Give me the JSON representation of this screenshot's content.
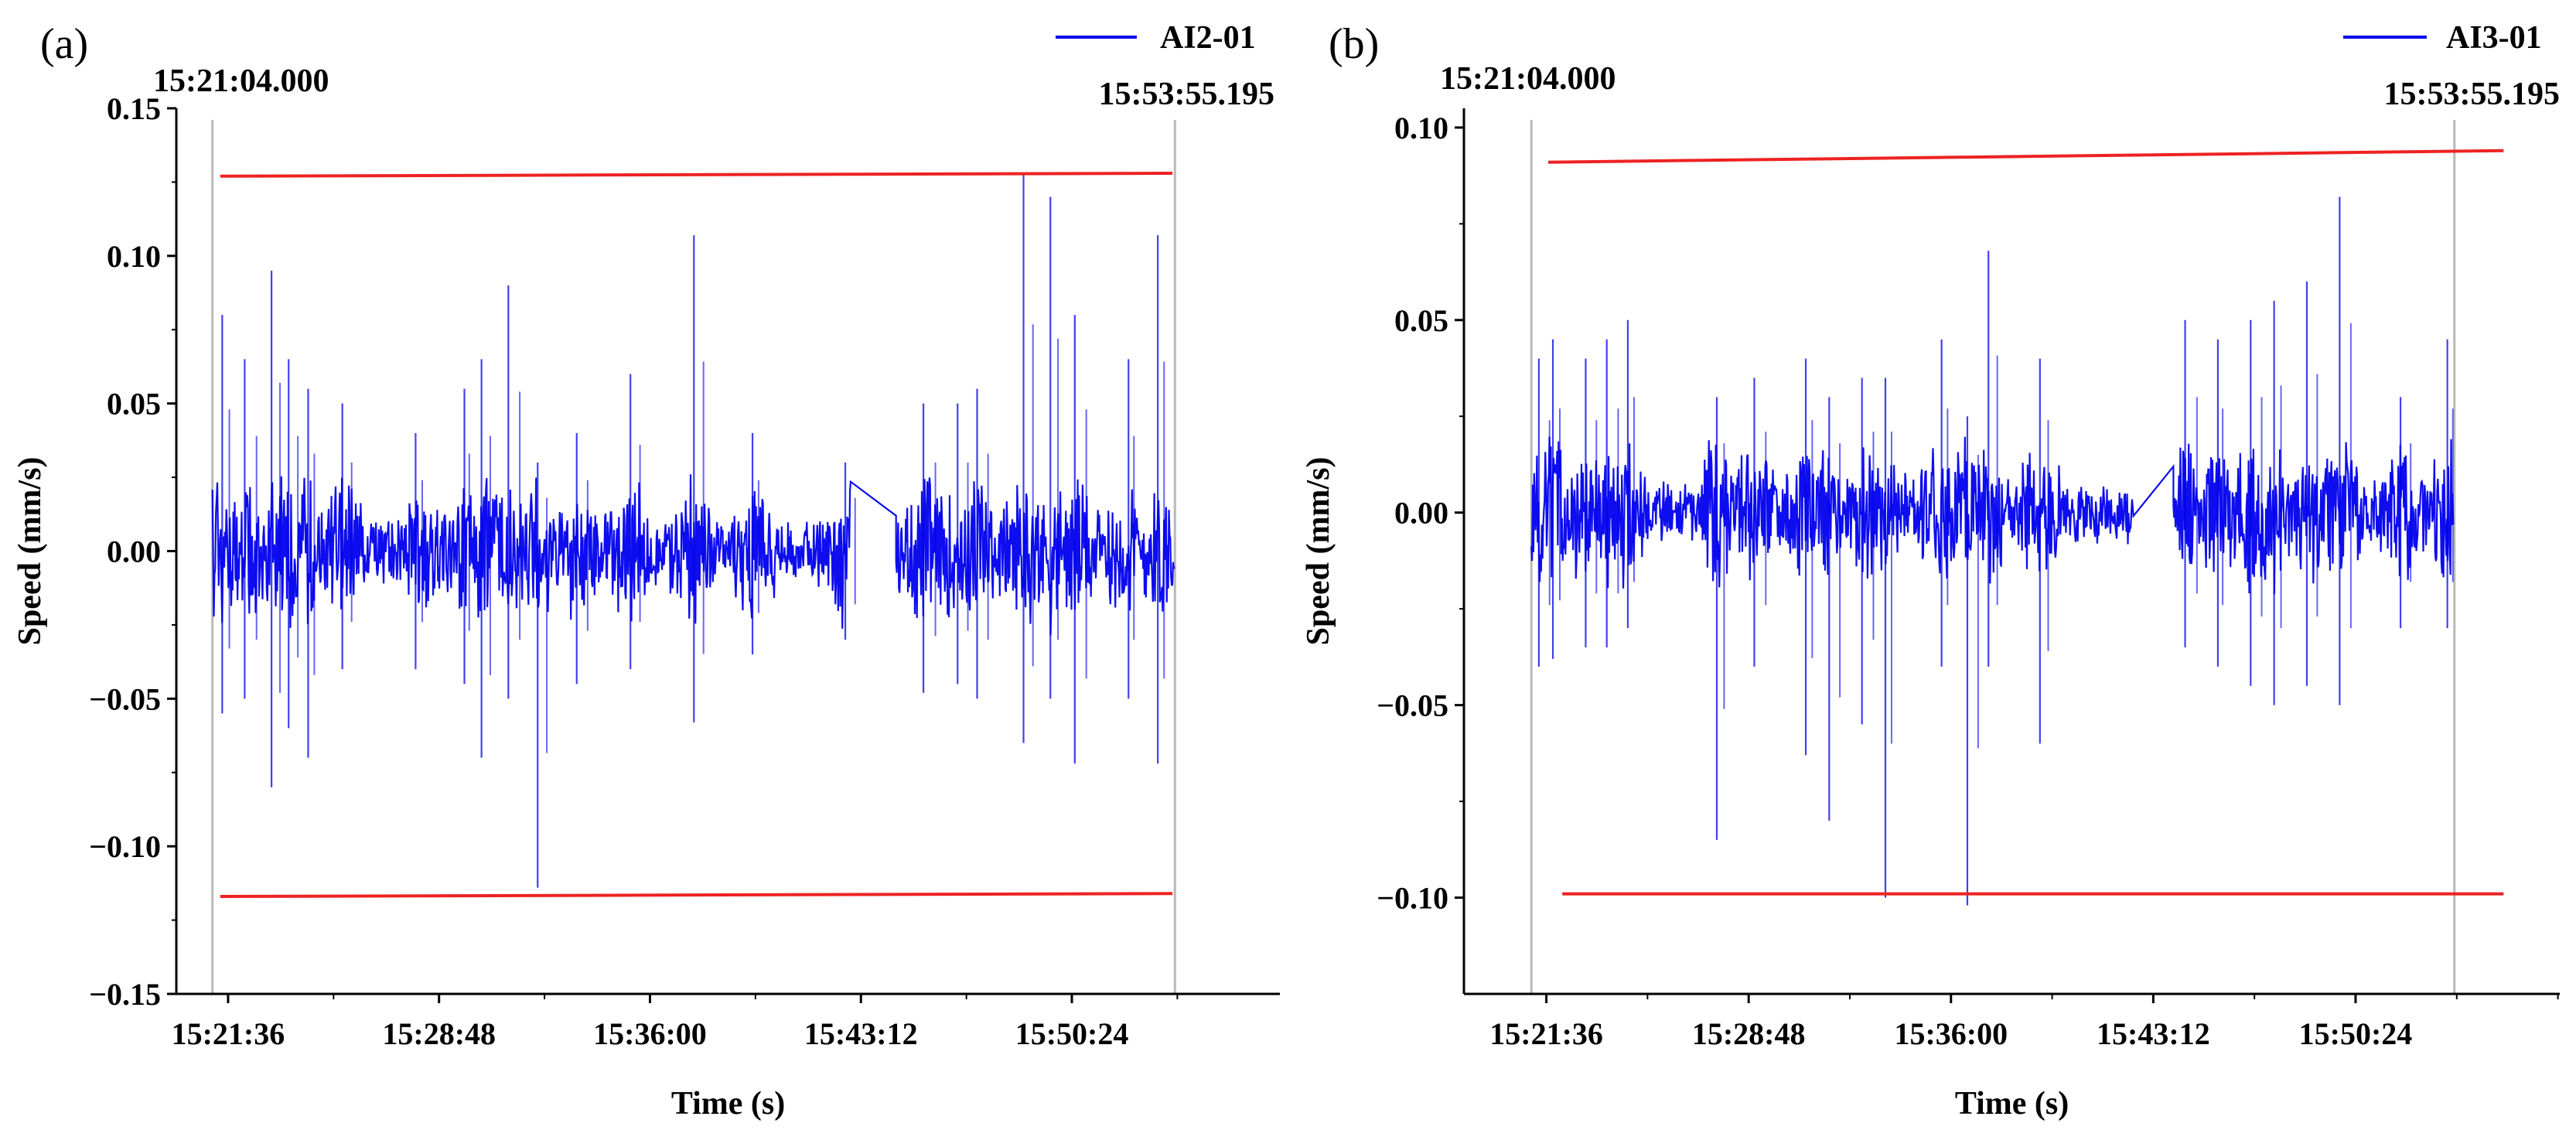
{
  "chart_data": [
    {
      "panel_label": "(a)",
      "type": "line",
      "xlabel": "Time (s)",
      "ylabel": "Speed (mm/s)",
      "xlim": [
        "15:19:50",
        "15:57:30"
      ],
      "ylim": [
        -0.15,
        0.15
      ],
      "x_ticks": [
        "15:21:36",
        "15:28:48",
        "15:36:00",
        "15:43:12",
        "15:50:24"
      ],
      "y_ticks": [
        "0.15",
        "0.10",
        "0.05",
        "0.00",
        "−0.05",
        "−0.10",
        "−0.15"
      ],
      "cursor_start": "15:21:04.000",
      "cursor_end": "15:53:55.195",
      "series": [
        {
          "name": "AI2-01",
          "color": "#0000ee",
          "segments": [
            [
              "15:21:04",
              "15:42:52"
            ],
            [
              "15:44:24",
              "15:53:55"
            ]
          ],
          "baseline_amplitude": 0.012,
          "peaks": [
            {
              "t": "15:21:24",
              "max": 0.08,
              "min": -0.055
            },
            {
              "t": "15:22:10",
              "max": 0.065,
              "min": -0.05
            },
            {
              "t": "15:23:05",
              "max": 0.095,
              "min": -0.08
            },
            {
              "t": "15:23:40",
              "max": 0.065,
              "min": -0.06
            },
            {
              "t": "15:24:20",
              "max": 0.055,
              "min": -0.07
            },
            {
              "t": "15:25:30",
              "max": 0.05,
              "min": -0.04
            },
            {
              "t": "15:28:00",
              "max": 0.04,
              "min": -0.04
            },
            {
              "t": "15:29:40",
              "max": 0.055,
              "min": -0.045
            },
            {
              "t": "15:30:15",
              "max": 0.065,
              "min": -0.07
            },
            {
              "t": "15:31:10",
              "max": 0.09,
              "min": -0.05
            },
            {
              "t": "15:32:10",
              "max": 0.03,
              "min": -0.114
            },
            {
              "t": "15:33:30",
              "max": 0.04,
              "min": -0.045
            },
            {
              "t": "15:35:20",
              "max": 0.06,
              "min": -0.04
            },
            {
              "t": "15:37:30",
              "max": 0.107,
              "min": -0.058
            },
            {
              "t": "15:39:30",
              "max": 0.04,
              "min": -0.035
            },
            {
              "t": "15:42:40",
              "max": 0.03,
              "min": -0.03
            },
            {
              "t": "15:45:20",
              "max": 0.05,
              "min": -0.048
            },
            {
              "t": "15:46:30",
              "max": 0.05,
              "min": -0.045
            },
            {
              "t": "15:47:10",
              "max": 0.055,
              "min": -0.05
            },
            {
              "t": "15:48:45",
              "max": 0.128,
              "min": -0.065
            },
            {
              "t": "15:49:40",
              "max": 0.12,
              "min": -0.05
            },
            {
              "t": "15:50:30",
              "max": 0.08,
              "min": -0.072
            },
            {
              "t": "15:52:20",
              "max": 0.065,
              "min": -0.05
            },
            {
              "t": "15:53:20",
              "max": 0.107,
              "min": -0.072
            }
          ]
        }
      ],
      "threshold_lines": [
        {
          "color": "#ee2222",
          "from": [
            "15:21:20",
            0.127
          ],
          "to": [
            "15:53:50",
            0.128
          ]
        },
        {
          "color": "#ee2222",
          "from": [
            "15:21:20",
            -0.117
          ],
          "to": [
            "15:53:50",
            -0.116
          ]
        }
      ]
    },
    {
      "panel_label": "(b)",
      "type": "line",
      "xlabel": "Time (s)",
      "ylabel": "Speed (mm/s)",
      "xlim": [
        "15:18:40",
        "15:57:40"
      ],
      "ylim": [
        -0.125,
        0.105
      ],
      "x_ticks": [
        "15:21:36",
        "15:28:48",
        "15:36:00",
        "15:43:12",
        "15:50:24"
      ],
      "y_ticks": [
        "0.10",
        "0.05",
        "0.00",
        "−0.05",
        "−0.10"
      ],
      "cursor_start": "15:21:04.000",
      "cursor_end": "15:53:55.195",
      "series": [
        {
          "name": "AI3-01",
          "color": "#0000ee",
          "segments": [
            [
              "15:21:04",
              "15:42:30"
            ],
            [
              "15:43:55",
              "15:53:55"
            ]
          ],
          "baseline_amplitude": 0.009,
          "peaks": [
            {
              "t": "15:21:20",
              "max": 0.04,
              "min": -0.04
            },
            {
              "t": "15:21:50",
              "max": 0.045,
              "min": -0.038
            },
            {
              "t": "15:23:00",
              "max": 0.04,
              "min": -0.035
            },
            {
              "t": "15:23:45",
              "max": 0.045,
              "min": -0.035
            },
            {
              "t": "15:24:30",
              "max": 0.05,
              "min": -0.03
            },
            {
              "t": "15:27:40",
              "max": 0.03,
              "min": -0.085
            },
            {
              "t": "15:29:00",
              "max": 0.035,
              "min": -0.04
            },
            {
              "t": "15:30:50",
              "max": 0.04,
              "min": -0.063
            },
            {
              "t": "15:31:40",
              "max": 0.03,
              "min": -0.08
            },
            {
              "t": "15:32:50",
              "max": 0.035,
              "min": -0.055
            },
            {
              "t": "15:33:40",
              "max": 0.035,
              "min": -0.1
            },
            {
              "t": "15:35:40",
              "max": 0.045,
              "min": -0.04
            },
            {
              "t": "15:36:35",
              "max": 0.025,
              "min": -0.102
            },
            {
              "t": "15:37:20",
              "max": 0.068,
              "min": -0.04
            },
            {
              "t": "15:39:10",
              "max": 0.04,
              "min": -0.06
            },
            {
              "t": "15:44:20",
              "max": 0.05,
              "min": -0.035
            },
            {
              "t": "15:45:30",
              "max": 0.045,
              "min": -0.04
            },
            {
              "t": "15:46:40",
              "max": 0.05,
              "min": -0.045
            },
            {
              "t": "15:47:30",
              "max": 0.055,
              "min": -0.05
            },
            {
              "t": "15:48:40",
              "max": 0.06,
              "min": -0.045
            },
            {
              "t": "15:49:50",
              "max": 0.082,
              "min": -0.05
            },
            {
              "t": "15:52:00",
              "max": 0.03,
              "min": -0.03
            },
            {
              "t": "15:53:40",
              "max": 0.045,
              "min": -0.03
            }
          ]
        }
      ],
      "threshold_lines": [
        {
          "color": "#ee2222",
          "from": [
            "15:21:40",
            0.091
          ],
          "to": [
            "15:55:40",
            0.094
          ]
        },
        {
          "color": "#ee2222",
          "from": [
            "15:22:10",
            -0.099
          ],
          "to": [
            "15:55:40",
            -0.099
          ]
        }
      ]
    }
  ]
}
